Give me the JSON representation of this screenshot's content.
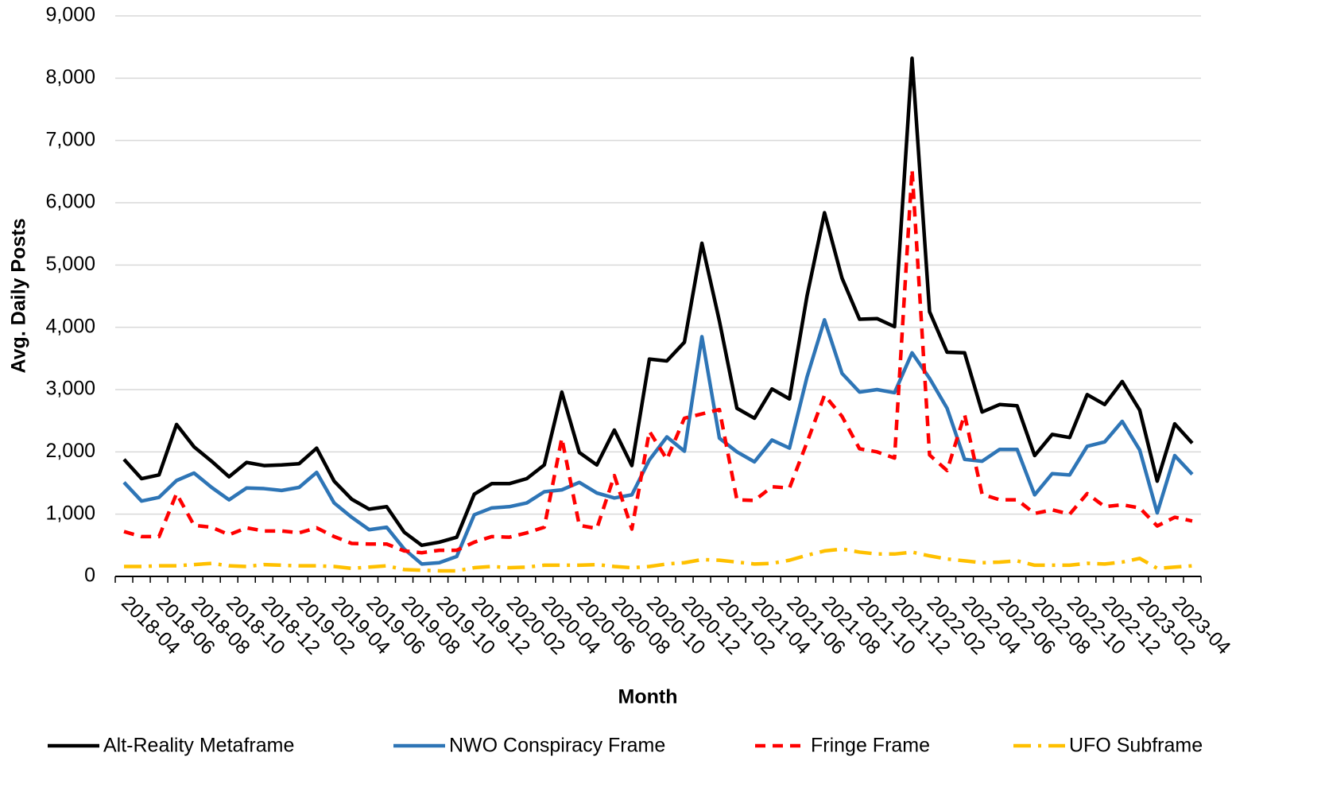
{
  "chart_data": {
    "type": "line",
    "x_label": "Month",
    "y_label": "Avg. Daily Posts",
    "categories": [
      "2018-04",
      null,
      "2018-06",
      null,
      "2018-08",
      null,
      "2018-10",
      null,
      "2018-12",
      null,
      "2019-02",
      null,
      "2019-04",
      null,
      "2019-06",
      null,
      "2019-08",
      null,
      "2019-10",
      null,
      "2019-12",
      null,
      "2020-02",
      null,
      "2020-04",
      null,
      "2020-06",
      null,
      "2020-08",
      null,
      "2020-10",
      null,
      "2020-12",
      null,
      "2021-02",
      null,
      "2021-04",
      null,
      "2021-06",
      null,
      "2021-08",
      null,
      "2021-10",
      null,
      "2021-12",
      null,
      "2022-02",
      null,
      "2022-04",
      null,
      "2022-06",
      null,
      "2022-08",
      null,
      "2022-10",
      null,
      "2022-12",
      null,
      "2023-02",
      null,
      "2023-04",
      null
    ],
    "series": [
      {
        "name": "Alt-Reality Metaframe",
        "color": "#000000",
        "dash": "solid",
        "values": [
          1880,
          1570,
          1630,
          2440,
          2080,
          1850,
          1600,
          1830,
          1780,
          1790,
          1810,
          2060,
          1530,
          1240,
          1080,
          1120,
          710,
          500,
          550,
          630,
          1320,
          1490,
          1490,
          1570,
          1790,
          2960,
          1990,
          1790,
          2350,
          1780,
          3490,
          3460,
          3760,
          5350,
          4100,
          2700,
          2540,
          3010,
          2850,
          4500,
          5840,
          4790,
          4130,
          4140,
          4010,
          8320,
          4250,
          3600,
          3590,
          2640,
          2760,
          2740,
          1940,
          2280,
          2230,
          2920,
          2760,
          3130,
          2670,
          1530,
          2450,
          2140
        ]
      },
      {
        "name": "NWO Conspiracy Frame",
        "color": "#2e75b6",
        "dash": "solid",
        "values": [
          1510,
          1210,
          1270,
          1540,
          1660,
          1430,
          1230,
          1420,
          1410,
          1380,
          1430,
          1670,
          1180,
          950,
          750,
          790,
          440,
          200,
          220,
          320,
          990,
          1100,
          1120,
          1180,
          1360,
          1390,
          1510,
          1340,
          1260,
          1310,
          1870,
          2240,
          2010,
          3850,
          2220,
          2000,
          1840,
          2190,
          2060,
          3200,
          4120,
          3260,
          2960,
          3000,
          2950,
          3590,
          3180,
          2700,
          1880,
          1850,
          2040,
          2040,
          1310,
          1650,
          1630,
          2090,
          2160,
          2490,
          2030,
          1020,
          1940,
          1640
        ]
      },
      {
        "name": "Fringe Frame",
        "color": "#ff0000",
        "dash": "dashed",
        "values": [
          720,
          640,
          640,
          1330,
          820,
          790,
          670,
          780,
          730,
          730,
          700,
          780,
          640,
          530,
          520,
          520,
          410,
          380,
          420,
          420,
          550,
          640,
          630,
          700,
          790,
          2220,
          820,
          770,
          1620,
          760,
          2330,
          1880,
          2540,
          2610,
          2680,
          1230,
          1220,
          1440,
          1420,
          2150,
          2910,
          2570,
          2050,
          2000,
          1900,
          6530,
          1950,
          1700,
          2600,
          1320,
          1230,
          1230,
          1010,
          1070,
          1000,
          1330,
          1120,
          1150,
          1100,
          810,
          950,
          890
        ]
      },
      {
        "name": "UFO Subframe",
        "color": "#ffc000",
        "dash": "dashdot",
        "values": [
          160,
          160,
          170,
          170,
          190,
          210,
          170,
          160,
          190,
          180,
          170,
          170,
          160,
          130,
          150,
          170,
          110,
          100,
          90,
          90,
          140,
          160,
          140,
          150,
          180,
          180,
          180,
          190,
          160,
          140,
          160,
          200,
          220,
          270,
          260,
          230,
          200,
          210,
          260,
          340,
          410,
          440,
          390,
          360,
          360,
          390,
          330,
          280,
          250,
          220,
          230,
          250,
          180,
          180,
          180,
          210,
          200,
          230,
          290,
          130,
          150,
          170
        ]
      }
    ],
    "ylim": [
      0,
      9000
    ],
    "yticks": [
      0,
      {
        "value": 1000,
        "label": "1,000"
      },
      {
        "value": 2000,
        "label": "2,000"
      },
      {
        "value": 3000,
        "label": "3,000"
      },
      {
        "value": 4000,
        "label": "4,000"
      },
      {
        "value": 5000,
        "label": "5,000"
      },
      {
        "value": 6000,
        "label": "6,000"
      },
      {
        "value": 7000,
        "label": "7,000"
      },
      {
        "value": 8000,
        "label": "8,000"
      },
      {
        "value": 9000,
        "label": "9,000"
      }
    ],
    "grid": true,
    "legend": "bottom"
  }
}
